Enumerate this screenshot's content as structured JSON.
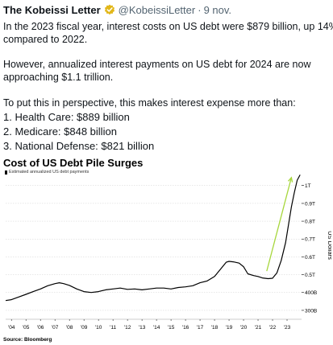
{
  "tweet": {
    "author_name": "The Kobeissi Letter",
    "handle": "@KobeissiLetter",
    "separator": "·",
    "date": "9 nov.",
    "paragraphs": [
      "In the 2023 fiscal year, interest costs on US debt were $879 billion, up 14%",
      "compared to 2022.",
      "However, annualized interest payments on US debt for 2024 are now",
      "approaching $1.1 trillion.",
      "To put this in perspective, this makes interest expense more than:"
    ],
    "list_items": [
      "1. Health Care: $889 billion",
      "2. Medicare: $848 billion",
      "3. National Defense: $821 billion"
    ]
  },
  "colors": {
    "text": "#0f1419",
    "muted": "#536471",
    "verified": "#e2b719",
    "line": "#000000",
    "arrow": "#a6d63b",
    "grid": "#d0d0d0"
  },
  "icons": {
    "verified": "verified-badge-icon"
  },
  "chart_data": {
    "type": "line",
    "title": "Cost of US Debt Pile Surges",
    "legend": "Estimated annualized US debt payments",
    "source": "Source: Bloomberg",
    "ylabel": "US Dollars",
    "x_ticks": [
      "'04",
      "'05",
      "'06",
      "'07",
      "'08",
      "'09",
      "'10",
      "'11",
      "'12",
      "'13",
      "'14",
      "'15",
      "'16",
      "'17",
      "'18",
      "'19",
      "'20",
      "'21",
      "'22",
      "'23"
    ],
    "y_ticks": [
      {
        "value": 300,
        "label": "300B"
      },
      {
        "value": 400,
        "label": "400B"
      },
      {
        "value": 500,
        "label": "0.5T"
      },
      {
        "value": 600,
        "label": "0.6T"
      },
      {
        "value": 700,
        "label": "0.7T"
      },
      {
        "value": 800,
        "label": "0.8T"
      },
      {
        "value": 900,
        "label": "0.9T"
      },
      {
        "value": 1000,
        "label": "1T"
      }
    ],
    "ylim": [
      250,
      1080
    ],
    "xlim": [
      2003.6,
      2024.0
    ],
    "grid": "horizontal",
    "series": [
      {
        "values": [
          [
            2003.6,
            355
          ],
          [
            2004.0,
            360
          ],
          [
            2004.5,
            375
          ],
          [
            2005.0,
            390
          ],
          [
            2005.5,
            405
          ],
          [
            2006.0,
            420
          ],
          [
            2006.5,
            438
          ],
          [
            2007.0,
            450
          ],
          [
            2007.3,
            455
          ],
          [
            2007.6,
            450
          ],
          [
            2008.0,
            440
          ],
          [
            2008.5,
            420
          ],
          [
            2009.0,
            405
          ],
          [
            2009.5,
            400
          ],
          [
            2010.0,
            405
          ],
          [
            2010.5,
            415
          ],
          [
            2011.0,
            420
          ],
          [
            2011.5,
            425
          ],
          [
            2012.0,
            418
          ],
          [
            2012.5,
            420
          ],
          [
            2013.0,
            415
          ],
          [
            2013.5,
            420
          ],
          [
            2014.0,
            425
          ],
          [
            2014.5,
            425
          ],
          [
            2015.0,
            420
          ],
          [
            2015.5,
            428
          ],
          [
            2016.0,
            432
          ],
          [
            2016.5,
            438
          ],
          [
            2017.0,
            455
          ],
          [
            2017.5,
            465
          ],
          [
            2018.0,
            490
          ],
          [
            2018.5,
            540
          ],
          [
            2018.8,
            570
          ],
          [
            2019.0,
            575
          ],
          [
            2019.3,
            572
          ],
          [
            2019.7,
            565
          ],
          [
            2020.0,
            545
          ],
          [
            2020.3,
            505
          ],
          [
            2020.7,
            495
          ],
          [
            2021.0,
            490
          ],
          [
            2021.3,
            482
          ],
          [
            2021.7,
            478
          ],
          [
            2022.0,
            480
          ],
          [
            2022.3,
            510
          ],
          [
            2022.6,
            580
          ],
          [
            2022.9,
            680
          ],
          [
            2023.1,
            780
          ],
          [
            2023.3,
            880
          ],
          [
            2023.5,
            960
          ],
          [
            2023.7,
            1030
          ],
          [
            2023.9,
            1060
          ]
        ]
      }
    ],
    "annotation": {
      "type": "arrow",
      "from": [
        2021.6,
        520
      ],
      "to": [
        2023.3,
        1045
      ]
    }
  }
}
